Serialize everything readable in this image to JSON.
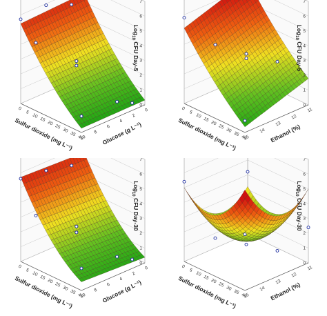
{
  "colors": {
    "high": "#d01010",
    "mid_high": "#f06010",
    "mid": "#f0e020",
    "mid_low": "#60c020",
    "low": "#10a010",
    "mesh": "#4a3020",
    "frame": "#9a9a9a",
    "point_fill": "#ffffff",
    "point_stroke": "#2030a0"
  },
  "chart_data": [
    {
      "id": "a",
      "type": "surface3d",
      "zlabel_main": "Log",
      "zlabel_sub": "10",
      "zlabel_rest": " CFU Day-5",
      "xlabel": "Sulfur dioxide (mg L⁻¹)",
      "ylabel": "Glucose (g L⁻¹)",
      "x_ticks": [
        "0",
        "5",
        "10",
        "15",
        "20",
        "25",
        "30",
        "35",
        "40"
      ],
      "y_ticks": [
        "0",
        "2",
        "4",
        "6",
        "8",
        "10"
      ],
      "z_ticks": [
        "0",
        "1",
        "2",
        "3",
        "4",
        "5",
        "6",
        "7"
      ],
      "xlim": [
        0,
        40
      ],
      "ylim": [
        0,
        10
      ],
      "zlim": [
        0,
        7
      ],
      "surface": {
        "c": 5.6,
        "bx": -0.18,
        "by": -0.02,
        "bxx": 0.0012,
        "byy": 0.0,
        "bxy": 0.0004
      },
      "points": [
        {
          "x": 0,
          "y": 2,
          "z": 5.2
        },
        {
          "x": 0,
          "y": 10,
          "z": 5.7
        },
        {
          "x": 0,
          "y": 6,
          "z": 5.9
        },
        {
          "x": 20,
          "y": 6,
          "z": 3.1
        },
        {
          "x": 20,
          "y": 6,
          "z": 2.8
        },
        {
          "x": 40,
          "y": 10,
          "z": 1.1
        },
        {
          "x": 30,
          "y": 2,
          "z": 0.1
        },
        {
          "x": 40,
          "y": 2,
          "z": 0.5
        },
        {
          "x": 10,
          "y": 10,
          "z": 4.6
        }
      ]
    },
    {
      "id": "b",
      "type": "surface3d",
      "zlabel_main": "Log",
      "zlabel_sub": "10",
      "zlabel_rest": " CFU Day-5",
      "xlabel": "Sulfur dioxide (mg L⁻¹)",
      "ylabel": "Ethanol (%)",
      "x_ticks": [
        "0",
        "5",
        "10",
        "15",
        "20",
        "25",
        "30",
        "35",
        "40"
      ],
      "y_ticks": [
        "11",
        "12",
        "13",
        "14",
        "15"
      ],
      "z_ticks": [
        "0",
        "1",
        "2",
        "3",
        "4",
        "5",
        "6",
        "7"
      ],
      "xlim": [
        0,
        40
      ],
      "ylim": [
        11,
        15
      ],
      "zlim": [
        0,
        7
      ],
      "surface": {
        "c": 6.5,
        "bx": -0.15,
        "by": -0.35,
        "bxx": 0.0008,
        "byy": 0.0,
        "bxy": 0.0
      },
      "points": [
        {
          "x": 0,
          "y": 11,
          "z": 5.6
        },
        {
          "x": 20,
          "y": 13,
          "z": 3.4
        },
        {
          "x": 20,
          "y": 13,
          "z": 3.1
        },
        {
          "x": 0,
          "y": 15,
          "z": 5.8
        },
        {
          "x": 40,
          "y": 15,
          "z": 0.8
        },
        {
          "x": 30,
          "y": 12,
          "z": 2.9
        },
        {
          "x": 10,
          "y": 14,
          "z": 4.0
        }
      ]
    },
    {
      "id": "c",
      "type": "surface3d",
      "zlabel_main": "Log",
      "zlabel_sub": "10",
      "zlabel_rest": " CFU Day-30",
      "xlabel": "Sulfur dioxide (mg L⁻¹)",
      "ylabel": "Glucose (g L⁻¹)",
      "x_ticks": [
        "0",
        "5",
        "10",
        "15",
        "20",
        "25",
        "30",
        "35",
        "40"
      ],
      "y_ticks": [
        "0",
        "2",
        "4",
        "6",
        "8",
        "10"
      ],
      "z_ticks": [
        "0",
        "1",
        "2",
        "3",
        "4",
        "5",
        "6",
        "7"
      ],
      "xlim": [
        0,
        40
      ],
      "ylim": [
        0,
        10
      ],
      "zlim": [
        0,
        7
      ],
      "surface": {
        "c": 5.5,
        "bx": -0.2,
        "by": 0.02,
        "bxx": 0.0018,
        "byy": 0.0,
        "bxy": 0.0
      },
      "points": [
        {
          "x": 0,
          "y": 2,
          "z": 5.0
        },
        {
          "x": 0,
          "y": 10,
          "z": 5.6
        },
        {
          "x": 0,
          "y": 6,
          "z": 5.4
        },
        {
          "x": 20,
          "y": 6,
          "z": 2.6
        },
        {
          "x": 20,
          "y": 6,
          "z": 2.2
        },
        {
          "x": 40,
          "y": 10,
          "z": 1.5
        },
        {
          "x": 30,
          "y": 2,
          "z": 0.3
        },
        {
          "x": 40,
          "y": 2,
          "z": 0.6
        },
        {
          "x": 10,
          "y": 10,
          "z": 3.6
        }
      ]
    },
    {
      "id": "d",
      "type": "surface3d",
      "zlabel_main": "Log",
      "zlabel_sub": "10",
      "zlabel_rest": " CFU Day-30",
      "xlabel": "Sulfur dioxide (mg L⁻¹)",
      "ylabel": "Ethanol (%)",
      "x_ticks": [
        "0",
        "5",
        "10",
        "15",
        "20",
        "25",
        "30",
        "35",
        "40"
      ],
      "y_ticks": [
        "11",
        "12",
        "13",
        "14",
        "15"
      ],
      "z_ticks": [
        "0",
        "1",
        "2",
        "3",
        "4",
        "5",
        "6",
        "7"
      ],
      "xlim": [
        0,
        40
      ],
      "ylim": [
        11,
        15
      ],
      "zlim": [
        0,
        7
      ],
      "surface": {
        "c": 3.2,
        "bx": -0.05,
        "by": -0.1,
        "bxx": 0.0,
        "byy": 0.0,
        "bxy": 0.0,
        "bowl": 3.6
      },
      "points": [
        {
          "x": 0,
          "y": 11,
          "z": 4.2
        },
        {
          "x": 0,
          "y": 15,
          "z": 5.4
        },
        {
          "x": 20,
          "y": 13,
          "z": 1.2
        },
        {
          "x": 40,
          "y": 15,
          "z": 3.8
        },
        {
          "x": 30,
          "y": 12,
          "z": 0.8
        },
        {
          "x": 10,
          "y": 14,
          "z": 1.6
        },
        {
          "x": 40,
          "y": 11,
          "z": 2.4
        }
      ]
    }
  ]
}
